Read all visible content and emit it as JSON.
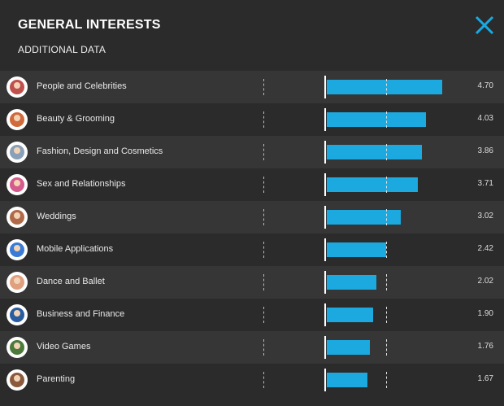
{
  "header": {
    "title": "GENERAL INTERESTS",
    "subtitle": "ADDITIONAL DATA",
    "close_icon": "close-x-icon",
    "accent_color": "#1ba9e0"
  },
  "chart_data": {
    "type": "bar",
    "orientation": "horizontal",
    "title": "GENERAL INTERESTS",
    "subtitle": "ADDITIONAL DATA",
    "categories": [
      "People and Celebrities",
      "Beauty & Grooming",
      "Fashion, Design and Cosmetics",
      "Sex and Relationships",
      "Weddings",
      "Mobile Applications",
      "Dance and Ballet",
      "Business and Finance",
      "Video Games",
      "Parenting"
    ],
    "values": [
      4.7,
      4.03,
      3.86,
      3.71,
      3.02,
      2.42,
      2.02,
      1.9,
      1.76,
      1.67
    ],
    "value_labels": [
      "4.70",
      "4.03",
      "3.86",
      "3.71",
      "3.02",
      "2.42",
      "2.02",
      "1.90",
      "1.76",
      "1.67"
    ],
    "reference_line": 2.42,
    "xlim": [
      0,
      5
    ],
    "bar_color": "#1ba9e0",
    "icons": [
      "star-celebrity-icon",
      "beauty-face-icon",
      "fashion-mannequin-icon",
      "couple-hearts-icon",
      "wedding-couple-icon",
      "mobile-apps-icon",
      "ballet-dancer-icon",
      "business-briefcase-icon",
      "gamepad-icon",
      "parenting-family-icon"
    ]
  }
}
